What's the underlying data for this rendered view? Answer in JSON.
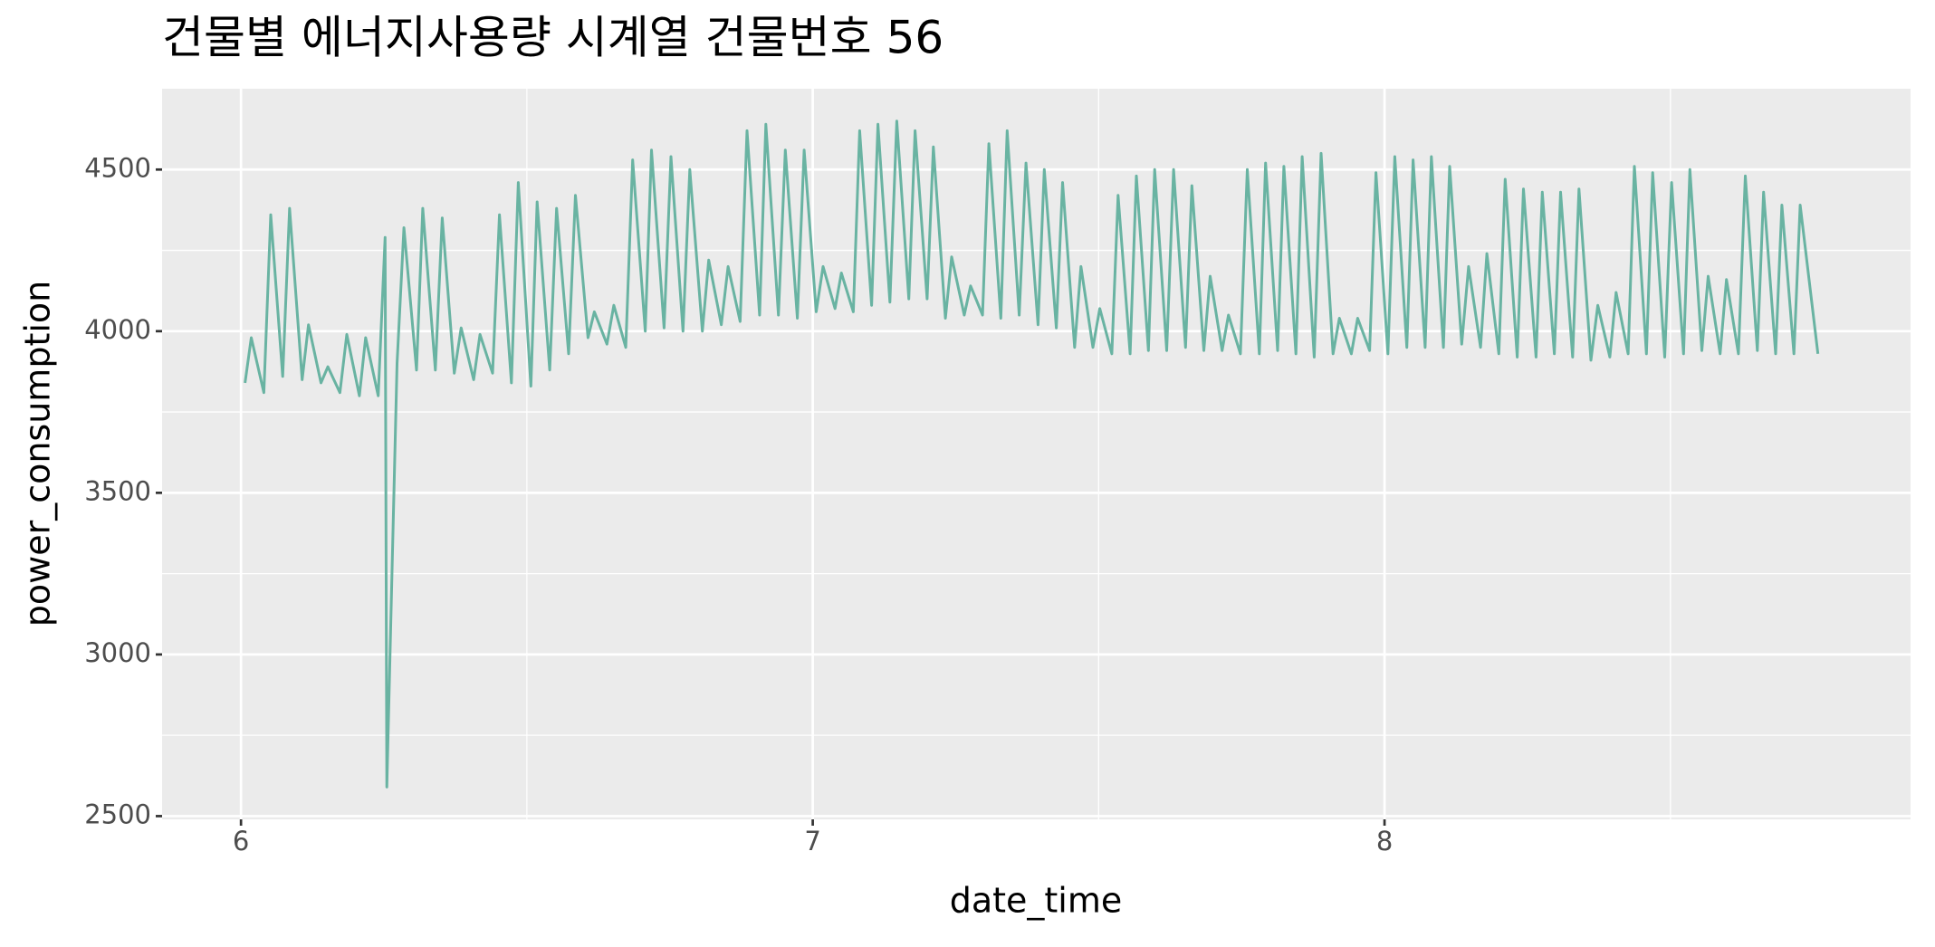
{
  "chart_data": {
    "type": "line",
    "title": "건물별 에너지사용량 시계열 건물번호 56",
    "x_label": "date_time",
    "y_label": "power_consumption",
    "xlim": [
      5.862,
      8.92
    ],
    "xticks": [
      6,
      7,
      8
    ],
    "ylim": [
      2490,
      4750
    ],
    "yticks": [
      2500,
      3000,
      3500,
      4000,
      4500
    ],
    "grid": true,
    "x": [
      6.007,
      6.018,
      6.04,
      6.052,
      6.073,
      6.085,
      6.107,
      6.118,
      6.14,
      6.152,
      6.173,
      6.185,
      6.207,
      6.218,
      6.24,
      6.252,
      6.255,
      6.273,
      6.285,
      6.307,
      6.318,
      6.34,
      6.352,
      6.373,
      6.385,
      6.407,
      6.418,
      6.44,
      6.452,
      6.473,
      6.485,
      6.507,
      6.518,
      6.54,
      6.552,
      6.573,
      6.585,
      6.607,
      6.618,
      6.64,
      6.652,
      6.673,
      6.685,
      6.707,
      6.718,
      6.74,
      6.752,
      6.773,
      6.785,
      6.807,
      6.818,
      6.84,
      6.852,
      6.873,
      6.885,
      6.907,
      6.918,
      6.94,
      6.952,
      6.973,
      6.985,
      7.006,
      7.018,
      7.039,
      7.05,
      7.071,
      7.082,
      7.103,
      7.114,
      7.135,
      7.147,
      7.168,
      7.179,
      7.2,
      7.211,
      7.232,
      7.243,
      7.265,
      7.276,
      7.297,
      7.308,
      7.329,
      7.34,
      7.361,
      7.373,
      7.394,
      7.405,
      7.426,
      7.437,
      7.458,
      7.469,
      7.49,
      7.502,
      7.523,
      7.534,
      7.555,
      7.566,
      7.587,
      7.598,
      7.619,
      7.631,
      7.652,
      7.663,
      7.684,
      7.695,
      7.716,
      7.727,
      7.748,
      7.76,
      7.781,
      7.792,
      7.813,
      7.824,
      7.845,
      7.856,
      7.877,
      7.889,
      7.91,
      7.921,
      7.942,
      7.953,
      7.974,
      7.985,
      8.006,
      8.018,
      8.039,
      8.05,
      8.071,
      8.082,
      8.103,
      8.114,
      8.135,
      8.147,
      8.168,
      8.179,
      8.2,
      8.211,
      8.232,
      8.243,
      8.265,
      8.276,
      8.297,
      8.308,
      8.329,
      8.34,
      8.361,
      8.373,
      8.394,
      8.405,
      8.426,
      8.437,
      8.458,
      8.469,
      8.49,
      8.502,
      8.523,
      8.534,
      8.555,
      8.566,
      8.587,
      8.598,
      8.619,
      8.631,
      8.652,
      8.663,
      8.684,
      8.695,
      8.716,
      8.727,
      8.758
    ],
    "series": [
      {
        "name": "power_consumption",
        "color": "#69b3a2",
        "values": [
          3840,
          3980,
          3810,
          4360,
          3860,
          4380,
          3850,
          4020,
          3840,
          3890,
          3810,
          3990,
          3800,
          3980,
          3800,
          4290,
          2590,
          3900,
          4320,
          3880,
          4380,
          3880,
          4350,
          3870,
          4010,
          3850,
          3990,
          3870,
          4360,
          3840,
          4460,
          3830,
          4400,
          3880,
          4380,
          3930,
          4420,
          3980,
          4060,
          3960,
          4080,
          3950,
          4530,
          4000,
          4560,
          4010,
          4540,
          4000,
          4500,
          4000,
          4220,
          4020,
          4200,
          4030,
          4620,
          4050,
          4640,
          4050,
          4560,
          4040,
          4560,
          4060,
          4200,
          4070,
          4180,
          4060,
          4620,
          4080,
          4640,
          4090,
          4650,
          4100,
          4620,
          4100,
          4570,
          4040,
          4230,
          4050,
          4140,
          4050,
          4580,
          4040,
          4620,
          4050,
          4520,
          4020,
          4500,
          4010,
          4460,
          3950,
          4200,
          3950,
          4070,
          3930,
          4420,
          3930,
          4480,
          3940,
          4500,
          3940,
          4500,
          3950,
          4450,
          3940,
          4170,
          3940,
          4050,
          3930,
          4500,
          3930,
          4520,
          3940,
          4510,
          3930,
          4540,
          3920,
          4550,
          3930,
          4040,
          3930,
          4040,
          3940,
          4490,
          3930,
          4540,
          3950,
          4530,
          3950,
          4540,
          3950,
          4510,
          3960,
          4200,
          3950,
          4240,
          3930,
          4470,
          3920,
          4440,
          3920,
          4430,
          3930,
          4430,
          3920,
          4440,
          3910,
          4080,
          3920,
          4120,
          3930,
          4510,
          3930,
          4490,
          3920,
          4460,
          3930,
          4500,
          3940,
          4170,
          3930,
          4160,
          3930,
          4480,
          3940,
          4430,
          3930,
          4390,
          3930,
          4390,
          3930
        ]
      }
    ]
  }
}
